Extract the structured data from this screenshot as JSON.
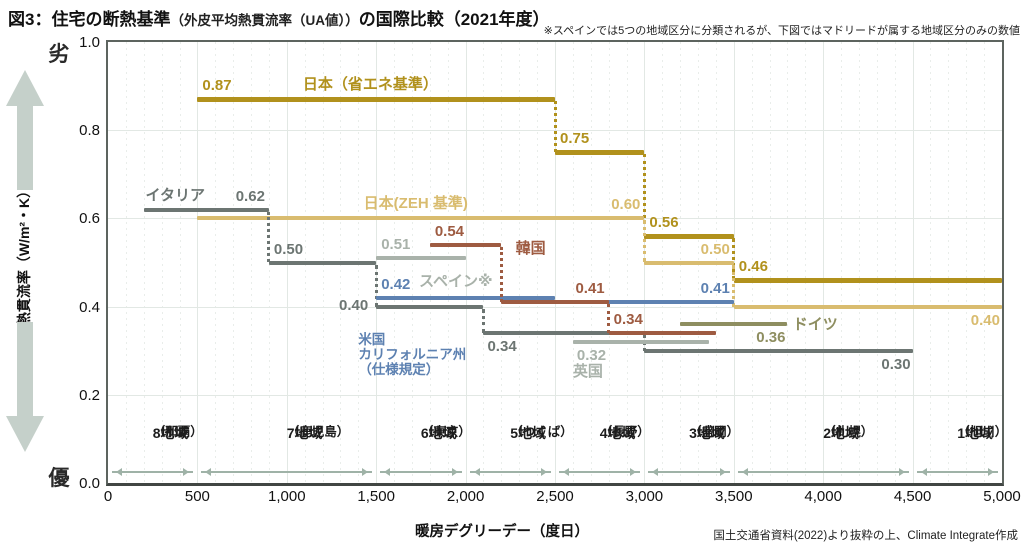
{
  "chart_data": {
    "type": "line",
    "subtype": "step-segments",
    "title_part1": "図3：住宅の断熱基準",
    "title_part2": "（外皮平均熱貫流率（UA値））",
    "title_part3": "の国際比較（2021年度）",
    "note": "※スペインでは5つの地域区分に分類されるが、下図ではマドリードが属する地域区分のみの数値",
    "source": "国土交通省資料(2022)より抜粋の上、Climate Integrate作成",
    "xlabel": "暖房デグリーデー（度日）",
    "ylabel": "熱貫流率（W/m²・K）",
    "worse_label": "劣",
    "better_label": "優",
    "xlim": [
      0,
      5000
    ],
    "ylim": [
      0,
      1.0
    ],
    "grid": true,
    "x_ticks": [
      "0",
      "500",
      "1,000",
      "1,500",
      "2,000",
      "2,500",
      "3,000",
      "3,500",
      "4,000",
      "4,500",
      "5,000"
    ],
    "y_ticks": [
      "1.0",
      "0.8",
      "0.6",
      "0.4",
      "0.2",
      "0.0"
    ],
    "regions": [
      {
        "name": "8地域",
        "city": "（那覇）",
        "from": 0,
        "to": 500
      },
      {
        "name": "7地域",
        "city": "（鹿児島）",
        "from": 500,
        "to": 1500
      },
      {
        "name": "6地域",
        "city": "（東京）",
        "from": 1500,
        "to": 2000
      },
      {
        "name": "5地域",
        "city": "（つくば）",
        "from": 2000,
        "to": 2500
      },
      {
        "name": "4地域",
        "city": "（長野）",
        "from": 2500,
        "to": 3000
      },
      {
        "name": "3地域",
        "city": "（盛岡）",
        "from": 3000,
        "to": 3500
      },
      {
        "name": "2地域",
        "city": "（札幌）",
        "from": 3500,
        "to": 4500
      },
      {
        "name": "1地域",
        "city": "（旭川）",
        "from": 4500,
        "to": 5000
      }
    ],
    "series": [
      {
        "id": "japan_enesho",
        "name": "日本（省エネ基準）",
        "color": "#b1911c",
        "thickness": 5,
        "segments": [
          {
            "x1": 500,
            "x2": 2500,
            "v": 0.87,
            "lp": "as"
          },
          {
            "x1": 2500,
            "x2": 3000,
            "v": 0.75,
            "lp": "as"
          },
          {
            "x1": 3000,
            "x2": 3500,
            "v": 0.56,
            "lp": "as"
          },
          {
            "x1": 3500,
            "x2": 5000,
            "v": 0.46,
            "lp": "as"
          }
        ]
      },
      {
        "id": "japan_zeh",
        "name": "日本(ZEH 基準)",
        "color": "#d9bc6f",
        "thickness": 4,
        "segments": [
          {
            "x1": 500,
            "x2": 3000,
            "v": 0.6,
            "lp": "ae"
          },
          {
            "x1": 3000,
            "x2": 3500,
            "v": 0.5,
            "lp": "ae"
          },
          {
            "x1": 3500,
            "x2": 5000,
            "v": 0.4,
            "lp": "be"
          }
        ]
      },
      {
        "id": "italy",
        "name": "イタリア",
        "color": "#6c7572",
        "thickness": 4,
        "segments": [
          {
            "x1": 200,
            "x2": 900,
            "v": 0.62,
            "lp": "ae"
          },
          {
            "x1": 900,
            "x2": 1500,
            "v": 0.5,
            "lp": "as"
          },
          {
            "x1": 1500,
            "x2": 2100,
            "v": 0.4,
            "lp": "ls"
          },
          {
            "x1": 2100,
            "x2": 3000,
            "v": 0.34,
            "lp": "bs"
          },
          {
            "x1": 3000,
            "x2": 4500,
            "v": 0.3,
            "lp": "be"
          }
        ]
      },
      {
        "id": "spain",
        "name": "スペイン※",
        "color": "#a9b2aa",
        "thickness": 4,
        "segments": [
          {
            "x1": 1500,
            "x2": 2000,
            "v": 0.51,
            "lp": "as"
          }
        ]
      },
      {
        "id": "us_ca",
        "name": "米国カリフォルニア州（仕様規定）",
        "color": "#5d81b1",
        "thickness": 4,
        "segments": [
          {
            "x1": 1500,
            "x2": 2500,
            "v": 0.42,
            "lp": "as"
          },
          {
            "x1": 2500,
            "x2": 3500,
            "v": 0.41,
            "lp": "ae"
          }
        ]
      },
      {
        "id": "uk",
        "name": "英国",
        "color": "#a9b2aa",
        "thickness": 4,
        "segments": [
          {
            "x1": 2600,
            "x2": 3360,
            "v": 0.32,
            "lp": "bs"
          }
        ]
      },
      {
        "id": "germany",
        "name": "ドイツ",
        "color": "#8e8e60",
        "thickness": 4,
        "segments": [
          {
            "x1": 3200,
            "x2": 3800,
            "v": 0.36,
            "lp": "be"
          }
        ]
      },
      {
        "id": "korea",
        "name": "韓国",
        "color": "#9e5b41",
        "thickness": 4,
        "segments": [
          {
            "x1": 1800,
            "x2": 2200,
            "v": 0.54,
            "lp": "as"
          },
          {
            "x1": 2200,
            "x2": 2800,
            "v": 0.41,
            "lp": "ae"
          },
          {
            "x1": 2800,
            "x2": 3400,
            "v": 0.34,
            "lp": "as"
          }
        ]
      }
    ],
    "country_labels": [
      {
        "series": "japan_enesho",
        "text": "日本（省エネ基準）",
        "x": 1090,
        "v": 0.87,
        "dy": -22,
        "size": 15
      },
      {
        "series": "japan_zeh",
        "text": "日本(ZEH 基準)",
        "x": 1430,
        "v": 0.6,
        "dy": -22,
        "size": 15
      },
      {
        "series": "italy",
        "text": "イタリア",
        "x": 210,
        "v": 0.62,
        "dy": -22,
        "size": 15
      },
      {
        "series": "spain",
        "text": "スペイン※",
        "x": 1740,
        "v": 0.51,
        "dy": 16,
        "size": 15
      },
      {
        "series": "korea",
        "text": "韓国",
        "x": 2280,
        "v": 0.54,
        "dy": -4,
        "size": 15
      },
      {
        "series": "us_ca",
        "text": "米国\nカリフォルニア州\n（仕様規定）",
        "x": 1400,
        "v": 0.42,
        "dy": 34,
        "size": 13.5
      },
      {
        "series": "uk",
        "text": "英国",
        "x": 2600,
        "v": 0.32,
        "dy": 22,
        "size": 15
      },
      {
        "series": "germany",
        "text": "ドイツ",
        "x": 3830,
        "v": 0.36,
        "dy": -7,
        "size": 15
      }
    ],
    "colors": {
      "grid_solid": "#e2e8e4",
      "grid_dotted": "#e9edea",
      "plot_border": "#5d645f",
      "axis_line": "#414643",
      "region_arrow": "#9fb2a7",
      "big_arrow": "#c5d0ca"
    }
  }
}
